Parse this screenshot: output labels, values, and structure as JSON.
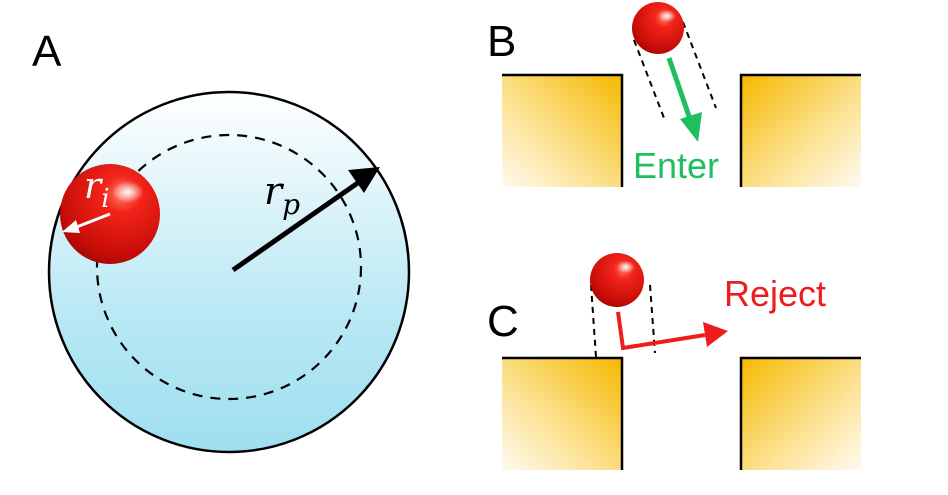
{
  "panels": {
    "a": {
      "letter": "A"
    },
    "b": {
      "letter": "B",
      "action_label": "Enter"
    },
    "c": {
      "letter": "C",
      "action_label": "Reject"
    }
  },
  "symbols": {
    "ion_radius": {
      "base": "r",
      "sub": "i"
    },
    "pore_radius": {
      "base": "r",
      "sub": "p"
    }
  },
  "colors": {
    "enter": "#1fbf5f",
    "reject": "#ee1c1c",
    "ion": "#d9120e",
    "pore_fill_top": "#ffffff",
    "pore_fill_bottom": "#a8e2f1",
    "wall": "#f7c326"
  }
}
